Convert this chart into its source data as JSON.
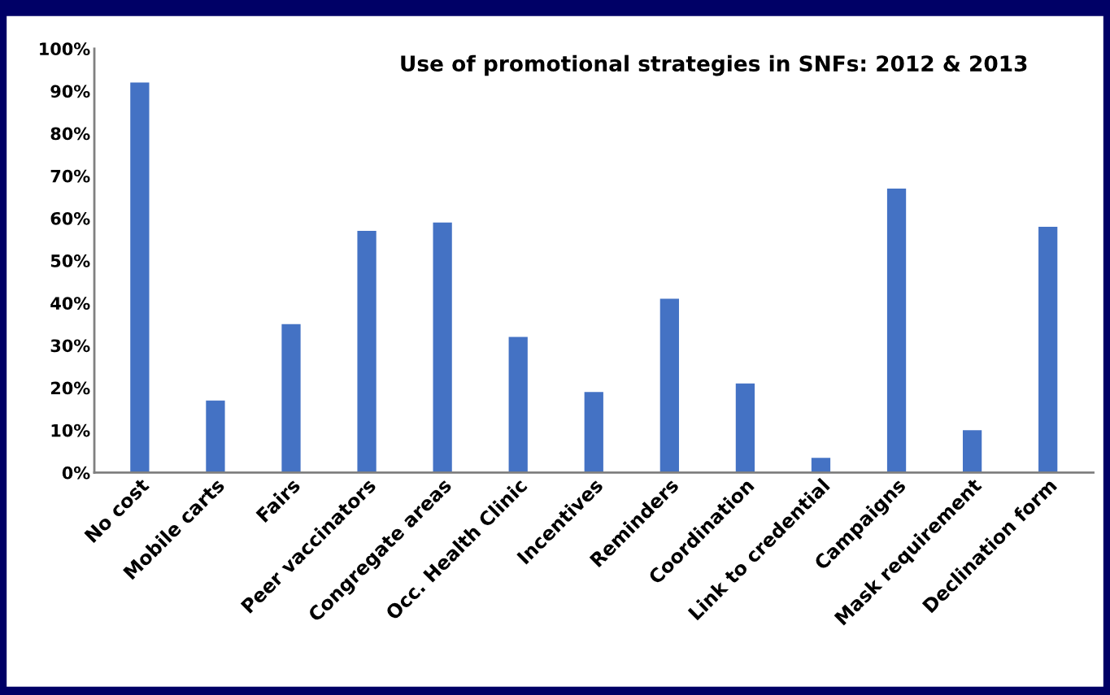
{
  "chart_data": {
    "type": "bar",
    "title": "Use of promotional strategies in SNFs: 2012 & 2013",
    "categories": [
      "No cost",
      "Mobile carts",
      "Fairs",
      "Peer vaccinators",
      "Congregate areas",
      "Occ. Health Clinic",
      "Incentives",
      "Reminders",
      "Coordination",
      "Link to credential",
      "Campaigns",
      "Mask requirement",
      "Declination form"
    ],
    "values": [
      92,
      17,
      35,
      57,
      59,
      32,
      19,
      41,
      21,
      3.5,
      67,
      10,
      58
    ],
    "color": "#4472c4",
    "ylim": [
      0,
      100
    ],
    "yticks": [
      {
        "value": 0,
        "label": "0%"
      },
      {
        "value": 10,
        "label": "10%"
      },
      {
        "value": 20,
        "label": "20%"
      },
      {
        "value": 30,
        "label": "30%"
      },
      {
        "value": 40,
        "label": "40%"
      },
      {
        "value": 50,
        "label": "50%"
      },
      {
        "value": 60,
        "label": "60%"
      },
      {
        "value": 70,
        "label": "70%"
      },
      {
        "value": 80,
        "label": "80%"
      },
      {
        "value": 90,
        "label": "90%"
      },
      {
        "value": 100,
        "label": "100%"
      }
    ],
    "grid": false,
    "legend": false
  }
}
